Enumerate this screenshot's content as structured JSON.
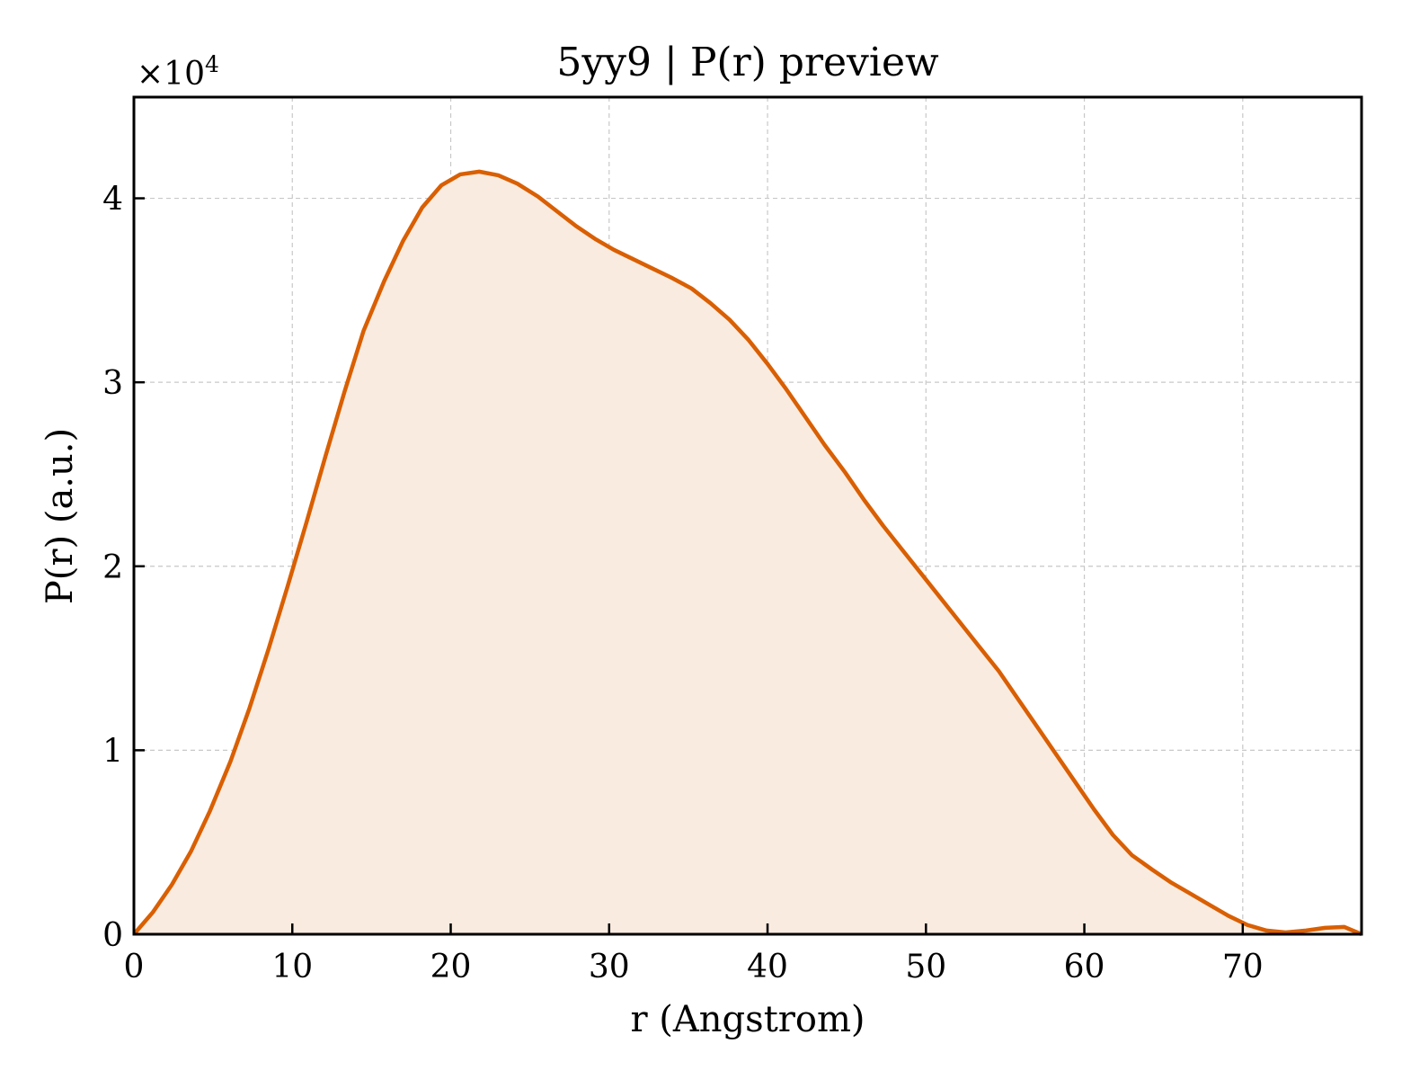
{
  "chart_data": {
    "type": "area",
    "title": "5yy9 | P(r) preview",
    "xlabel": "r (Angstrom)",
    "ylabel": "P(r) (a.u.)",
    "y_offset_text": "×10",
    "y_offset_exponent": "4",
    "xlim": [
      0,
      77.5
    ],
    "ylim": [
      0,
      45500
    ],
    "x_ticks": [
      0,
      10,
      20,
      30,
      40,
      50,
      60,
      70
    ],
    "x_tick_labels": [
      "0",
      "10",
      "20",
      "30",
      "40",
      "50",
      "60",
      "70"
    ],
    "y_ticks": [
      0,
      10000,
      20000,
      30000,
      40000
    ],
    "y_tick_labels": [
      "0",
      "1",
      "2",
      "3",
      "4"
    ],
    "grid": true,
    "line_color": "#d95f02",
    "fill_color": "#faebe0",
    "series": [
      {
        "x": [
          0,
          1.2,
          2.4,
          3.6,
          4.8,
          6.1,
          7.3,
          8.5,
          9.7,
          10.9,
          12.1,
          13.3,
          14.5,
          15.8,
          17.0,
          18.2,
          19.4,
          20.6,
          21.8,
          23.0,
          24.2,
          25.5,
          26.7,
          27.9,
          29.1,
          30.3,
          31.5,
          32.7,
          33.9,
          35.2,
          36.4,
          37.6,
          38.8,
          40.0,
          41.2,
          42.4,
          43.6,
          44.9,
          46.1,
          47.3,
          48.5,
          49.7,
          50.9,
          52.1,
          53.3,
          54.6,
          55.8,
          57.0,
          58.2,
          59.4,
          60.6,
          61.8,
          63.0,
          64.3,
          65.5,
          66.7,
          67.9,
          69.1,
          70.3,
          71.5,
          72.7,
          74.0,
          75.2,
          76.4,
          77.5
        ],
        "y": [
          0,
          1200,
          2700,
          4500,
          6700,
          9400,
          12300,
          15500,
          18900,
          22400,
          26000,
          29500,
          32800,
          35500,
          37700,
          39500,
          40700,
          41300,
          41450,
          41250,
          40800,
          40100,
          39300,
          38500,
          37800,
          37200,
          36700,
          36200,
          35700,
          35100,
          34300,
          33400,
          32300,
          31000,
          29600,
          28100,
          26600,
          25100,
          23600,
          22200,
          20900,
          19600,
          18300,
          17000,
          15700,
          14300,
          12800,
          11300,
          9800,
          8300,
          6800,
          5400,
          4300,
          3500,
          2800,
          2200,
          1600,
          1000,
          500,
          200,
          100,
          200,
          350,
          400,
          0
        ]
      }
    ]
  }
}
